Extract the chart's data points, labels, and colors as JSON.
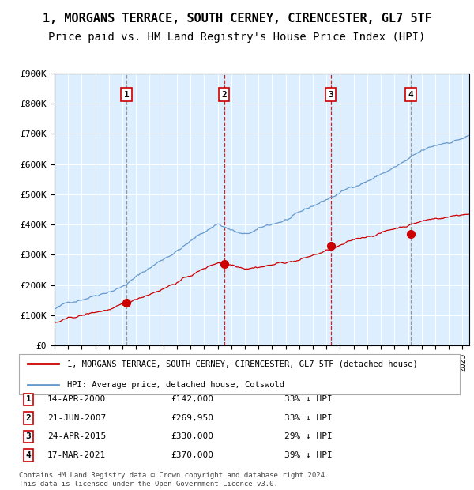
{
  "title": "1, MORGANS TERRACE, SOUTH CERNEY, CIRENCESTER, GL7 5TF",
  "subtitle": "Price paid vs. HM Land Registry's House Price Index (HPI)",
  "legend_label_red": "1, MORGANS TERRACE, SOUTH CERNEY, CIRENCESTER, GL7 5TF (detached house)",
  "legend_label_blue": "HPI: Average price, detached house, Cotswold",
  "ylim": [
    0,
    900000
  ],
  "yticks": [
    0,
    100000,
    200000,
    300000,
    400000,
    500000,
    600000,
    700000,
    800000,
    900000
  ],
  "ytick_labels": [
    "£0",
    "£100K",
    "£200K",
    "£300K",
    "£400K",
    "£500K",
    "£600K",
    "£700K",
    "£800K",
    "£900K"
  ],
  "sale_dates": [
    2000.29,
    2007.47,
    2015.31,
    2021.21
  ],
  "sale_prices": [
    142000,
    269950,
    330000,
    370000
  ],
  "sale_labels": [
    "1",
    "2",
    "3",
    "4"
  ],
  "sale_label_dates": [
    "14-APR-2000",
    "21-JUN-2007",
    "24-APR-2015",
    "17-MAR-2021"
  ],
  "sale_price_labels": [
    "£142,000",
    "£269,950",
    "£330,000",
    "£370,000"
  ],
  "sale_hpi_labels": [
    "33% ↓ HPI",
    "33% ↓ HPI",
    "29% ↓ HPI",
    "39% ↓ HPI"
  ],
  "red_color": "#cc0000",
  "blue_color": "#6699cc",
  "bg_color": "#ddeeff",
  "footnote": "Contains HM Land Registry data © Crown copyright and database right 2024.\nThis data is licensed under the Open Government Licence v3.0.",
  "title_fontsize": 11,
  "subtitle_fontsize": 10
}
